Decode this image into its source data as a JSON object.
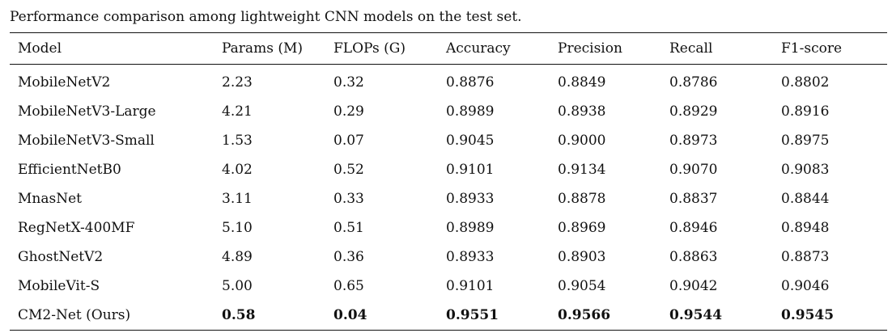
{
  "caption": "Performance comparison among lightweight CNN models on the test set.",
  "table": {
    "headers": [
      "Model",
      "Params (M)",
      "FLOPs (G)",
      "Accuracy",
      "Precision",
      "Recall",
      "F1-score"
    ],
    "rows": [
      [
        "MobileNetV2",
        "2.23",
        "0.32",
        "0.8876",
        "0.8849",
        "0.8786",
        "0.8802"
      ],
      [
        "MobileNetV3-Large",
        "4.21",
        "0.29",
        "0.8989",
        "0.8938",
        "0.8929",
        "0.8916"
      ],
      [
        "MobileNetV3-Small",
        "1.53",
        "0.07",
        "0.9045",
        "0.9000",
        "0.8973",
        "0.8975"
      ],
      [
        "EfficientNetB0",
        "4.02",
        "0.52",
        "0.9101",
        "0.9134",
        "0.9070",
        "0.9083"
      ],
      [
        "MnasNet",
        "3.11",
        "0.33",
        "0.8933",
        "0.8878",
        "0.8837",
        "0.8844"
      ],
      [
        "RegNetX-400MF",
        "5.10",
        "0.51",
        "0.8989",
        "0.8969",
        "0.8946",
        "0.8948"
      ],
      [
        "GhostNetV2",
        "4.89",
        "0.36",
        "0.8933",
        "0.8903",
        "0.8863",
        "0.8873"
      ],
      [
        "MobileVit-S",
        "5.00",
        "0.65",
        "0.9101",
        "0.9054",
        "0.9042",
        "0.9046"
      ],
      [
        "CM2-Net (Ours)",
        "0.58",
        "0.04",
        "0.9551",
        "0.9566",
        "0.9544",
        "0.9545"
      ]
    ]
  }
}
